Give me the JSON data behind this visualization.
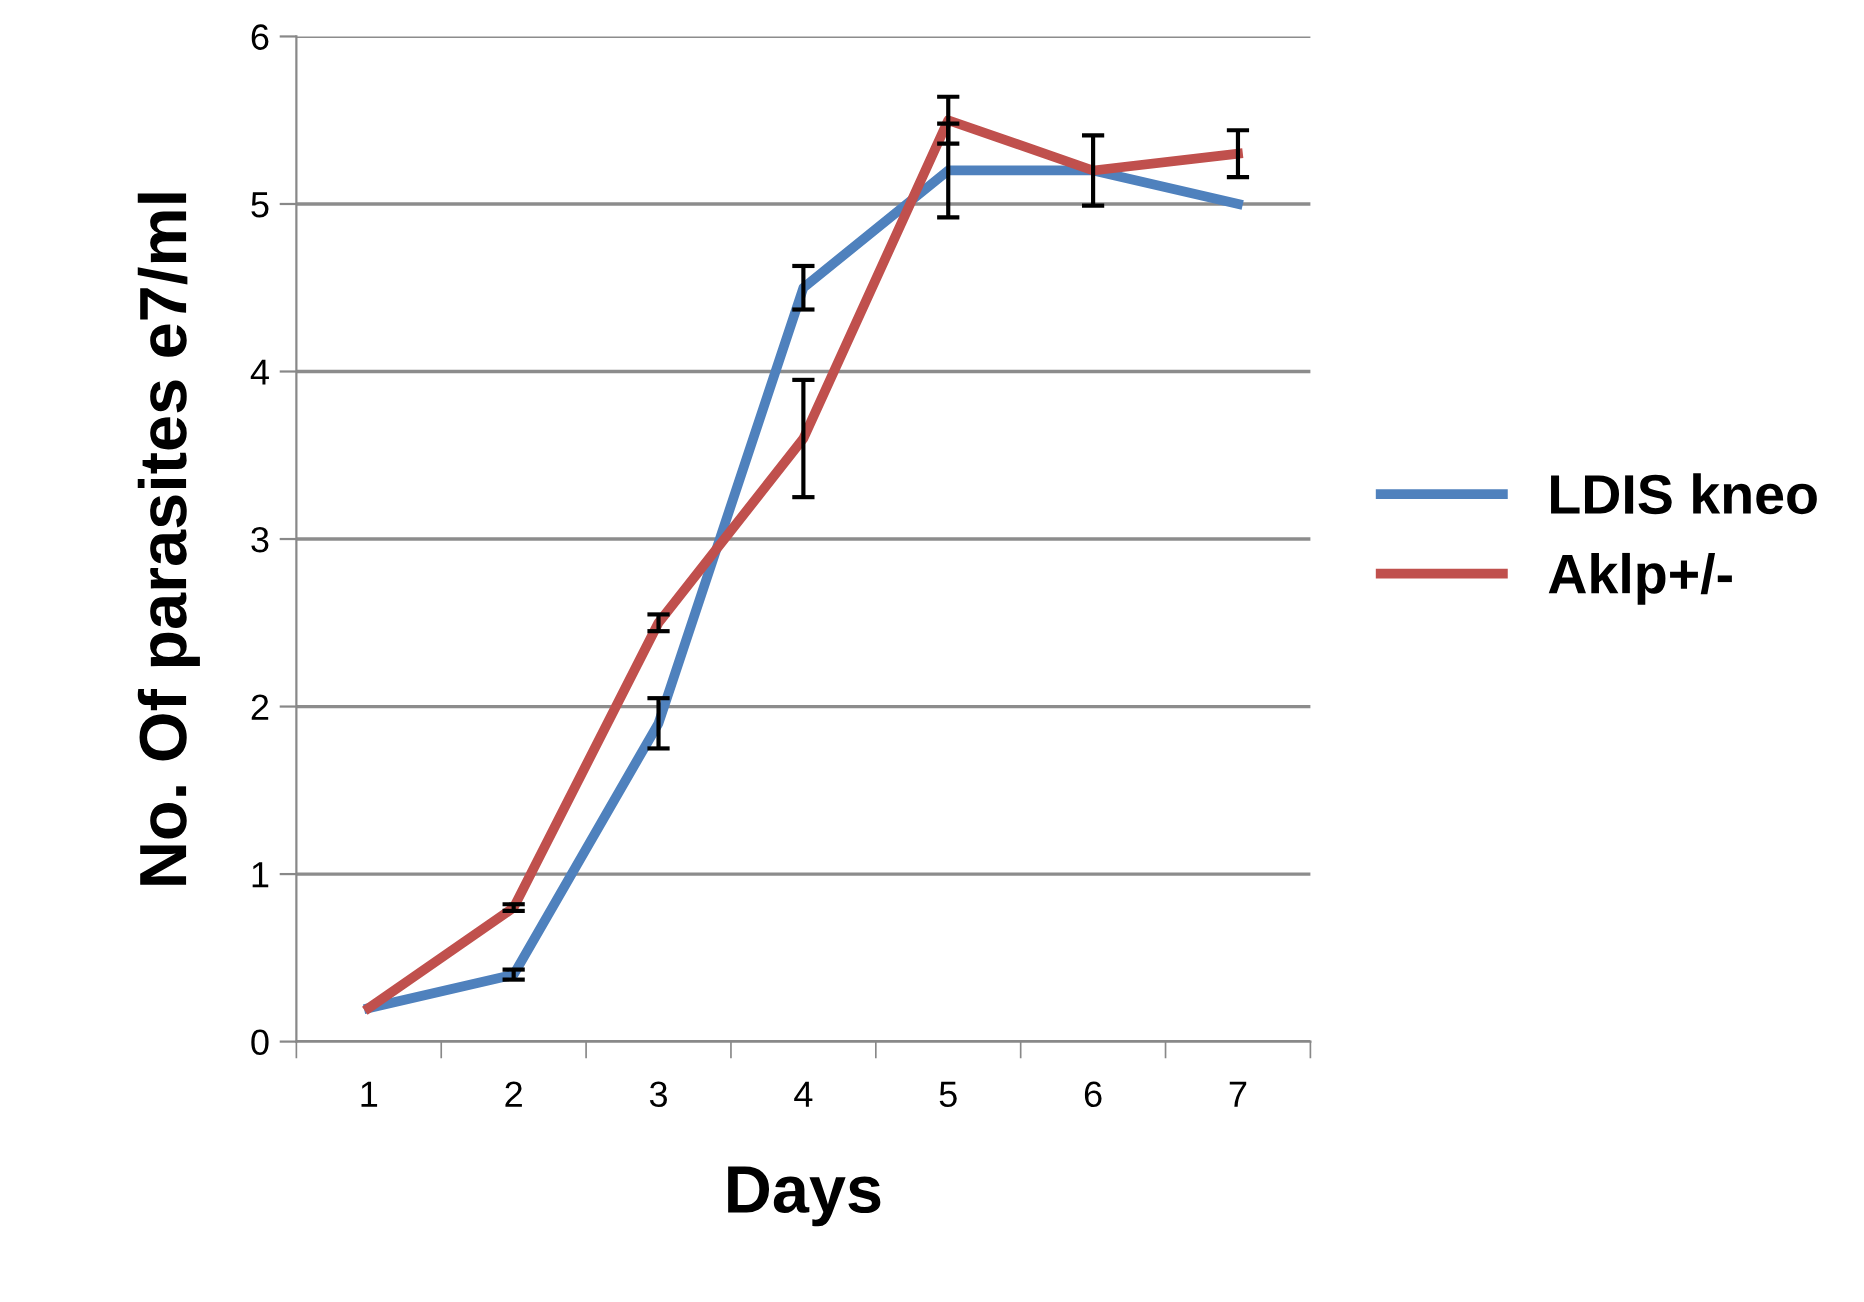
{
  "chart_data": {
    "type": "line",
    "xlabel": "Days",
    "ylabel": "No. Of parasites e7/ml",
    "categories": [
      "1",
      "2",
      "3",
      "4",
      "5",
      "6",
      "7"
    ],
    "series": [
      {
        "name": "LDIS kneo",
        "color": "#4f81bd",
        "values": [
          0.2,
          0.4,
          1.9,
          4.5,
          5.2,
          5.2,
          5.0
        ],
        "errors": [
          null,
          0.03,
          0.15,
          0.13,
          0.28,
          null,
          null
        ]
      },
      {
        "name": "Aklp+/-",
        "color": "#c0504d",
        "values": [
          0.2,
          0.8,
          2.5,
          3.6,
          5.5,
          5.2,
          5.3
        ],
        "errors": [
          null,
          0.02,
          0.05,
          0.35,
          0.14,
          0.21,
          0.14
        ]
      }
    ],
    "ylim": [
      0,
      6
    ],
    "yticks": [
      0,
      1,
      2,
      3,
      4,
      5,
      6
    ],
    "grid": "y",
    "legend": "right",
    "marker": "none",
    "line_style": "solid"
  }
}
